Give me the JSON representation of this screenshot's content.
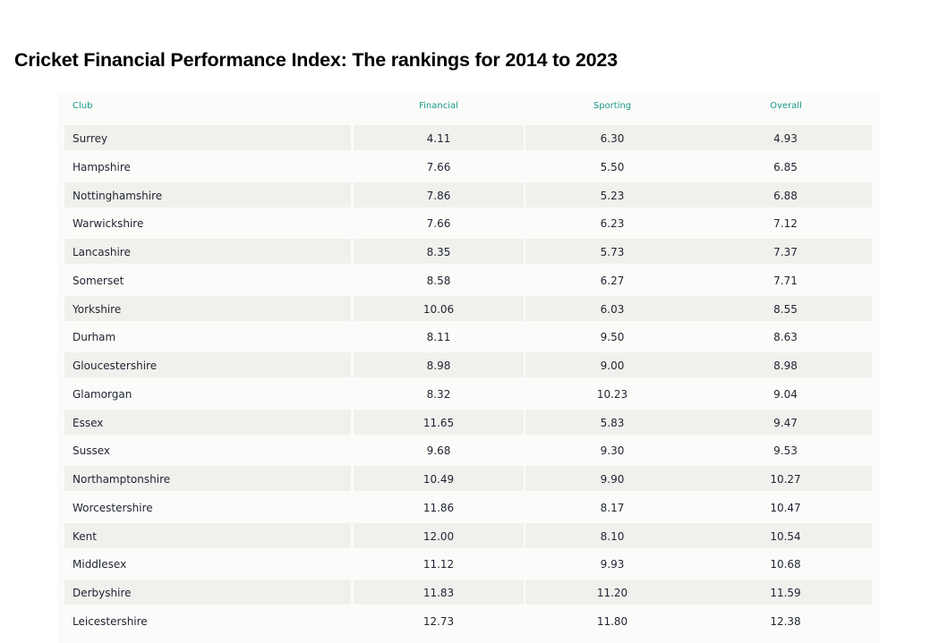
{
  "title": "Cricket Financial Performance Index: The rankings for 2014 to 2023",
  "table": {
    "columns": [
      "Club",
      "Financial",
      "Sporting",
      "Overall"
    ],
    "rows": [
      [
        "Surrey",
        "4.11",
        "6.30",
        "4.93"
      ],
      [
        "Hampshire",
        "7.66",
        "5.50",
        "6.85"
      ],
      [
        "Nottinghamshire",
        "7.86",
        "5.23",
        "6.88"
      ],
      [
        "Warwickshire",
        "7.66",
        "6.23",
        "7.12"
      ],
      [
        "Lancashire",
        "8.35",
        "5.73",
        "7.37"
      ],
      [
        "Somerset",
        "8.58",
        "6.27",
        "7.71"
      ],
      [
        "Yorkshire",
        "10.06",
        "6.03",
        "8.55"
      ],
      [
        "Durham",
        "8.11",
        "9.50",
        "8.63"
      ],
      [
        "Gloucestershire",
        "8.98",
        "9.00",
        "8.98"
      ],
      [
        "Glamorgan",
        "8.32",
        "10.23",
        "9.04"
      ],
      [
        "Essex",
        "11.65",
        "5.83",
        "9.47"
      ],
      [
        "Sussex",
        "9.68",
        "9.30",
        "9.53"
      ],
      [
        "Northamptonshire",
        "10.49",
        "9.90",
        "10.27"
      ],
      [
        "Worcestershire",
        "11.86",
        "8.17",
        "10.47"
      ],
      [
        "Kent",
        "12.00",
        "8.10",
        "10.54"
      ],
      [
        "Middlesex",
        "11.12",
        "9.93",
        "10.68"
      ],
      [
        "Derbyshire",
        "11.83",
        "11.20",
        "11.59"
      ],
      [
        "Leicestershire",
        "12.73",
        "11.80",
        "12.38"
      ]
    ]
  },
  "colors": {
    "header_text": "#1a9a86",
    "row_shade": "#f0f0ed",
    "panel": "#fbfbfa",
    "body_text": "#1f2430"
  }
}
